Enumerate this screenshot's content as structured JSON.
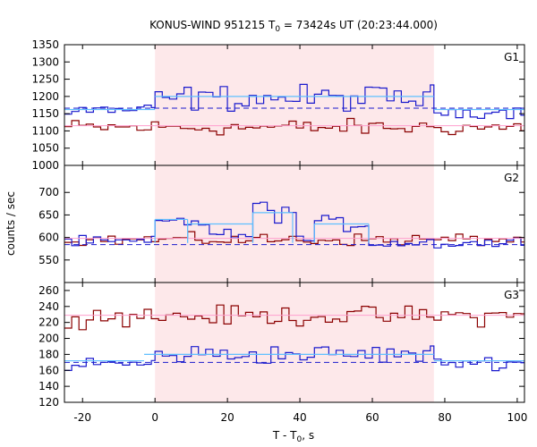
{
  "chart_data": {
    "type": "line",
    "title": "KONUS-WIND 951215 T₀ = 73424s UT (20:23:44.000)",
    "title_parts": {
      "pre": "KONUS-WIND 951215 T",
      "sub": "0",
      "post": " = 73424s UT (20:23:44.000)"
    },
    "xlabel_parts": {
      "pre": "T - T",
      "sub": "0",
      "post": ", s"
    },
    "ylabel": "counts / sec",
    "xlim": [
      -25,
      102
    ],
    "xticks": [
      -20,
      0,
      20,
      40,
      60,
      80,
      100
    ],
    "shaded_interval": [
      0,
      77
    ],
    "colors": {
      "red_series": "#8b0000",
      "blue_series": "#1a1acd",
      "cyan_fit": "#5fbfff",
      "pink_fit": "#ff9fcf",
      "shade": "#fde8ea"
    },
    "panels": [
      {
        "name": "G1",
        "ylim": [
          1000,
          1350
        ],
        "yticks": [
          1000,
          1050,
          1100,
          1150,
          1200,
          1250,
          1300,
          1350
        ],
        "red_level": 1110,
        "red_amp": 35,
        "red_bg": 1115,
        "blue_bg": 1160,
        "blue_bg_dashed": 1166,
        "blue_regions": [
          {
            "x": [
              -25,
              0
            ],
            "level": 1160,
            "amp": 30,
            "width": 2
          },
          {
            "x": [
              0,
              77
            ],
            "level": 1195,
            "amp": 55,
            "width": 2
          },
          {
            "x": [
              77,
              102
            ],
            "level": 1155,
            "amp": 25,
            "width": 2
          }
        ],
        "blue_fit": [
          {
            "x": [
              -25,
              0
            ],
            "y": 1162
          },
          {
            "x": [
              0,
              77
            ],
            "y": 1200
          },
          {
            "x": [
              77,
              102
            ],
            "y": 1162
          }
        ]
      },
      {
        "name": "G2",
        "ylim": [
          500,
          760
        ],
        "yticks": [
          550,
          600,
          650,
          700
        ],
        "red_level": 595,
        "red_amp": 20,
        "red_bg": 598,
        "blue_bg": 588,
        "blue_bg_dashed": 584,
        "blue_regions": [
          {
            "x": [
              -25,
              0
            ],
            "level": 590,
            "amp": 18,
            "width": 2
          },
          {
            "x": [
              0,
              15
            ],
            "level": 635,
            "amp": 25,
            "width": 2
          },
          {
            "x": [
              15,
              27
            ],
            "level": 605,
            "amp": 20,
            "width": 2
          },
          {
            "x": [
              27,
              39
            ],
            "level": 660,
            "amp": 35,
            "width": 2
          },
          {
            "x": [
              39,
              44
            ],
            "level": 595,
            "amp": 15,
            "width": 2
          },
          {
            "x": [
              44,
              59
            ],
            "level": 630,
            "amp": 25,
            "width": 2
          },
          {
            "x": [
              59,
              102
            ],
            "level": 588,
            "amp": 20,
            "width": 2
          }
        ],
        "blue_fit": [
          {
            "x": [
              0,
              9
            ],
            "y": 640
          },
          {
            "x": [
              9,
              27
            ],
            "y": 630
          },
          {
            "x": [
              27,
              38
            ],
            "y": 655
          },
          {
            "x": [
              44,
              59
            ],
            "y": 630
          }
        ]
      },
      {
        "name": "G3",
        "ylim": [
          120,
          270
        ],
        "yticks": [
          120,
          140,
          160,
          180,
          200,
          220,
          240,
          260
        ],
        "red_level": 228,
        "red_amp": 18,
        "red_bg": 229,
        "blue_bg": 173,
        "blue_bg_dashed": 170,
        "blue_regions": [
          {
            "x": [
              -25,
              0
            ],
            "level": 168,
            "amp": 14,
            "width": 2
          },
          {
            "x": [
              0,
              77
            ],
            "level": 180,
            "amp": 18,
            "width": 2
          },
          {
            "x": [
              77,
              102
            ],
            "level": 170,
            "amp": 12,
            "width": 2
          }
        ],
        "blue_fit": [
          {
            "x": [
              -25,
              -3
            ],
            "y": 172
          },
          {
            "x": [
              -3,
              77
            ],
            "y": 180
          },
          {
            "x": [
              77,
              102
            ],
            "y": 172
          }
        ]
      }
    ]
  }
}
